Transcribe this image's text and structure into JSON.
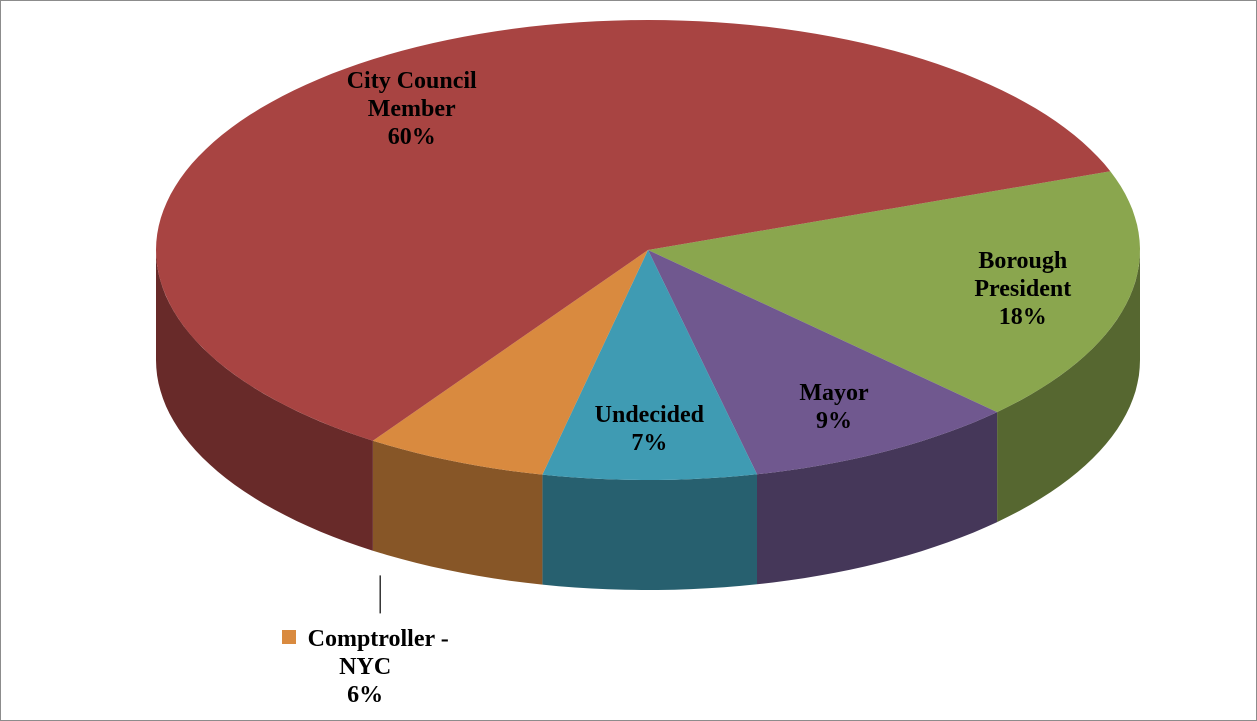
{
  "chart_data": {
    "type": "pie3d",
    "categories": [
      "Borough President",
      "Mayor",
      "Undecided",
      "Comptroller - NYC",
      "City Council Member"
    ],
    "values": [
      18,
      9,
      7,
      6,
      60
    ],
    "value_labels": [
      "18%",
      "9%",
      "7%",
      "6%",
      "60%"
    ],
    "colors": [
      "#8aa64e",
      "#70588f",
      "#3f9bb3",
      "#d98a3f",
      "#a84442"
    ]
  }
}
